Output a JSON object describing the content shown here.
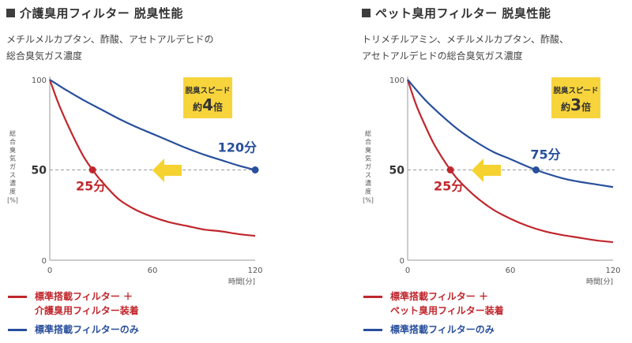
{
  "panels": [
    {
      "title": "介護臭用フィルター 脱臭性能",
      "subtitle_lines": [
        "メチルメルカプタン、酢酸、アセトアルデヒドの",
        "総合臭気ガス濃度"
      ],
      "speed_label": "脱臭スピード",
      "speed_value_prefix": "約",
      "speed_value_number": "4",
      "speed_value_suffix": "倍",
      "red_time_label": "25分",
      "blue_time_label": "120分",
      "legend": [
        {
          "lines": [
            "標準搭載フィルター ＋",
            "介護臭用フィルター装着"
          ]
        },
        {
          "lines": [
            "標準搭載フィルターのみ"
          ]
        }
      ]
    },
    {
      "title": "ペット臭用フィルター 脱臭性能",
      "subtitle_lines": [
        "トリメチルアミン、メチルメルカプタン、酢酸、",
        "アセトアルデヒドの総合臭気ガス濃度"
      ],
      "speed_label": "脱臭スピード",
      "speed_value_prefix": "約",
      "speed_value_number": "3",
      "speed_value_suffix": "倍",
      "red_time_label": "25分",
      "blue_time_label": "75分",
      "legend": [
        {
          "lines": [
            "標準搭載フィルター ＋",
            "ペット臭用フィルター装着"
          ]
        },
        {
          "lines": [
            "標準搭載フィルターのみ"
          ]
        }
      ]
    }
  ],
  "colors": {
    "red": "#c0272d",
    "blue": "#284f9c",
    "yellow": "#f6d230",
    "badge": "#f7d43b",
    "axis": "#999999",
    "dashed": "#9a9a9a"
  },
  "chart_data": [
    {
      "type": "line",
      "title": "介護臭用フィルター 脱臭性能",
      "ylabel": "総合臭気ガス濃度 [%]",
      "xlabel": "時間[分]",
      "xlim": [
        0,
        120
      ],
      "ylim": [
        0,
        100
      ],
      "x_ticks": [
        "0",
        "60",
        "120"
      ],
      "y_ticks": [
        "0",
        "50",
        "100"
      ],
      "reference_y": 50,
      "series": [
        {
          "name": "標準搭載フィルター ＋ 介護臭用フィルター装着",
          "color": "#c0272d",
          "x": [
            0,
            5,
            10,
            15,
            20,
            25,
            30,
            40,
            50,
            60,
            70,
            80,
            90,
            100,
            110,
            120
          ],
          "y": [
            100,
            87,
            76,
            66,
            57,
            50,
            44,
            34,
            28,
            24,
            21,
            19,
            17,
            16,
            14.5,
            13.5
          ]
        },
        {
          "name": "標準搭載フィルターのみ",
          "color": "#284f9c",
          "x": [
            0,
            10,
            20,
            30,
            40,
            50,
            60,
            70,
            80,
            90,
            100,
            110,
            120
          ],
          "y": [
            100,
            94,
            88.5,
            83.5,
            78.5,
            74,
            70,
            66,
            62,
            58.5,
            55.5,
            52.5,
            50
          ]
        }
      ],
      "markers": [
        {
          "x": 25,
          "y": 50,
          "label": "25分",
          "color": "#c0272d"
        },
        {
          "x": 120,
          "y": 50,
          "label": "120分",
          "color": "#284f9c"
        }
      ],
      "annotation": "脱臭スピード 約4倍"
    },
    {
      "type": "line",
      "title": "ペット臭用フィルター 脱臭性能",
      "ylabel": "総合臭気ガス濃度 [%]",
      "xlabel": "時間[分]",
      "xlim": [
        0,
        120
      ],
      "ylim": [
        0,
        100
      ],
      "x_ticks": [
        "0",
        "60",
        "120"
      ],
      "y_ticks": [
        "0",
        "50",
        "100"
      ],
      "reference_y": 50,
      "series": [
        {
          "name": "標準搭載フィルター ＋ ペット臭用フィルター装着",
          "color": "#c0272d",
          "x": [
            0,
            5,
            10,
            15,
            20,
            25,
            30,
            40,
            50,
            60,
            70,
            80,
            90,
            100,
            110,
            120
          ],
          "y": [
            100,
            86,
            75,
            65,
            57,
            50,
            44,
            35,
            28,
            23,
            19,
            16,
            14,
            12.5,
            11,
            10
          ]
        },
        {
          "name": "標準搭載フィルターのみ",
          "color": "#284f9c",
          "x": [
            0,
            10,
            20,
            30,
            40,
            50,
            60,
            75,
            90,
            100,
            110,
            120
          ],
          "y": [
            100,
            89,
            80,
            72,
            65.5,
            60,
            56,
            50,
            45.5,
            43.5,
            42,
            40.5
          ]
        }
      ],
      "markers": [
        {
          "x": 25,
          "y": 50,
          "label": "25分",
          "color": "#c0272d"
        },
        {
          "x": 75,
          "y": 50,
          "label": "75分",
          "color": "#284f9c"
        }
      ],
      "annotation": "脱臭スピード 約3倍"
    }
  ]
}
